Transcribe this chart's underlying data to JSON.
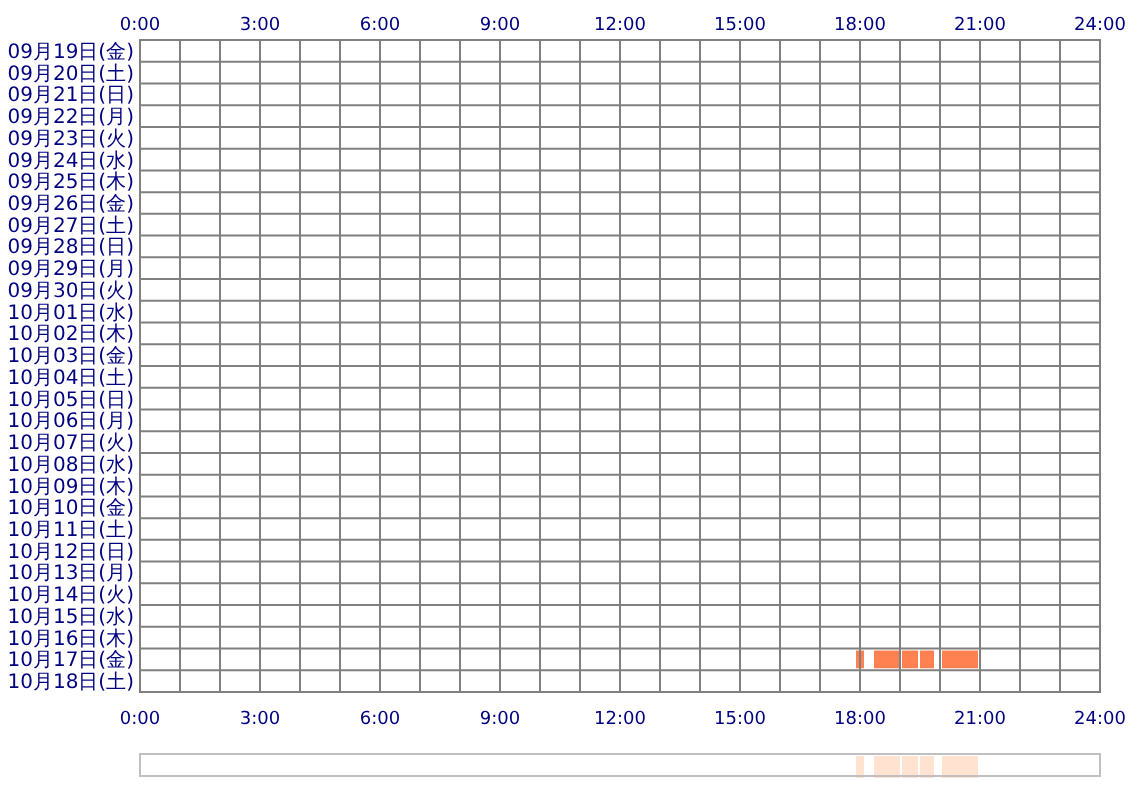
{
  "chart_data": [
    {
      "type": "bar",
      "orientation": "horizontal",
      "grid": true,
      "categories": [
        "09月19日(金)",
        "09月20日(土)",
        "09月21日(日)",
        "09月22日(月)",
        "09月23日(火)",
        "09月24日(水)",
        "09月25日(木)",
        "09月26日(金)",
        "09月27日(土)",
        "09月28日(日)",
        "09月29日(月)",
        "09月30日(火)",
        "10月01日(水)",
        "10月02日(木)",
        "10月03日(金)",
        "10月04日(土)",
        "10月05日(日)",
        "10月06日(月)",
        "10月07日(火)",
        "10月08日(水)",
        "10月09日(木)",
        "10月10日(金)",
        "10月11日(土)",
        "10月12日(日)",
        "10月13日(月)",
        "10月14日(火)",
        "10月15日(水)",
        "10月16日(木)",
        "10月17日(金)",
        "10月18日(土)"
      ],
      "series": [
        {
          "color": "#ff8050",
          "base": [
            null,
            null,
            null,
            null,
            null,
            null,
            null,
            null,
            null,
            null,
            null,
            null,
            null,
            null,
            null,
            null,
            null,
            null,
            null,
            null,
            null,
            null,
            null,
            null,
            null,
            null,
            null,
            null,
            17.9,
            null
          ],
          "values": [
            null,
            null,
            null,
            null,
            null,
            null,
            null,
            null,
            null,
            null,
            null,
            null,
            null,
            null,
            null,
            null,
            null,
            null,
            null,
            null,
            null,
            null,
            null,
            null,
            null,
            null,
            null,
            null,
            0.2,
            null
          ]
        },
        {
          "color": "#ff8050",
          "base": [
            null,
            null,
            null,
            null,
            null,
            null,
            null,
            null,
            null,
            null,
            null,
            null,
            null,
            null,
            null,
            null,
            null,
            null,
            null,
            null,
            null,
            null,
            null,
            null,
            null,
            null,
            null,
            null,
            18.35,
            null
          ],
          "values": [
            null,
            null,
            null,
            null,
            null,
            null,
            null,
            null,
            null,
            null,
            null,
            null,
            null,
            null,
            null,
            null,
            null,
            null,
            null,
            null,
            null,
            null,
            null,
            null,
            null,
            null,
            null,
            null,
            0.65,
            null
          ]
        },
        {
          "color": "#ff8050",
          "base": [
            null,
            null,
            null,
            null,
            null,
            null,
            null,
            null,
            null,
            null,
            null,
            null,
            null,
            null,
            null,
            null,
            null,
            null,
            null,
            null,
            null,
            null,
            null,
            null,
            null,
            null,
            null,
            null,
            19.05,
            null
          ],
          "values": [
            null,
            null,
            null,
            null,
            null,
            null,
            null,
            null,
            null,
            null,
            null,
            null,
            null,
            null,
            null,
            null,
            null,
            null,
            null,
            null,
            null,
            null,
            null,
            null,
            null,
            null,
            null,
            null,
            0.4,
            null
          ]
        },
        {
          "color": "#ff8050",
          "base": [
            null,
            null,
            null,
            null,
            null,
            null,
            null,
            null,
            null,
            null,
            null,
            null,
            null,
            null,
            null,
            null,
            null,
            null,
            null,
            null,
            null,
            null,
            null,
            null,
            null,
            null,
            null,
            null,
            19.5,
            null
          ],
          "values": [
            null,
            null,
            null,
            null,
            null,
            null,
            null,
            null,
            null,
            null,
            null,
            null,
            null,
            null,
            null,
            null,
            null,
            null,
            null,
            null,
            null,
            null,
            null,
            null,
            null,
            null,
            null,
            null,
            0.35,
            null
          ]
        },
        {
          "color": "#ff8050",
          "base": [
            null,
            null,
            null,
            null,
            null,
            null,
            null,
            null,
            null,
            null,
            null,
            null,
            null,
            null,
            null,
            null,
            null,
            null,
            null,
            null,
            null,
            null,
            null,
            null,
            null,
            null,
            null,
            null,
            20.05,
            null
          ],
          "values": [
            null,
            null,
            null,
            null,
            null,
            null,
            null,
            null,
            null,
            null,
            null,
            null,
            null,
            null,
            null,
            null,
            null,
            null,
            null,
            null,
            null,
            null,
            null,
            null,
            null,
            null,
            null,
            null,
            0.9,
            null
          ]
        }
      ],
      "xlim": [
        0,
        24
      ],
      "xticks": [
        {
          "value": 0,
          "label": "0:00"
        },
        {
          "value": 1,
          "label": null
        },
        {
          "value": 2,
          "label": null
        },
        {
          "value": 3,
          "label": "3:00"
        },
        {
          "value": 4,
          "label": null
        },
        {
          "value": 5,
          "label": null
        },
        {
          "value": 6,
          "label": "6:00"
        },
        {
          "value": 7,
          "label": null
        },
        {
          "value": 8,
          "label": null
        },
        {
          "value": 9,
          "label": "9:00"
        },
        {
          "value": 10,
          "label": null
        },
        {
          "value": 11,
          "label": null
        },
        {
          "value": 12,
          "label": "12:00"
        },
        {
          "value": 13,
          "label": null
        },
        {
          "value": 14,
          "label": null
        },
        {
          "value": 15,
          "label": "15:00"
        },
        {
          "value": 16,
          "label": null
        },
        {
          "value": 17,
          "label": null
        },
        {
          "value": 18,
          "label": "18:00"
        },
        {
          "value": 19,
          "label": null
        },
        {
          "value": 20,
          "label": null
        },
        {
          "value": 21,
          "label": "21:00"
        },
        {
          "value": 22,
          "label": null
        },
        {
          "value": 23,
          "label": null
        },
        {
          "value": 24,
          "label": "24:00"
        }
      ],
      "x2lim": [
        0,
        24
      ],
      "x2ticks": [
        {
          "value": 0,
          "label": "0:00"
        },
        {
          "value": 3,
          "label": "3:00"
        },
        {
          "value": 6,
          "label": "6:00"
        },
        {
          "value": 9,
          "label": "9:00"
        },
        {
          "value": 12,
          "label": "12:00"
        },
        {
          "value": 15,
          "label": "15:00"
        },
        {
          "value": 18,
          "label": "18:00"
        },
        {
          "value": 21,
          "label": "21:00"
        },
        {
          "value": 24,
          "label": "24:00"
        }
      ]
    },
    {
      "type": "bar",
      "orientation": "horizontal",
      "categories": [
        null
      ],
      "xlim": [
        0,
        24
      ],
      "series": [
        {
          "color": "#ffe2d0",
          "base": [
            17.9
          ],
          "values": [
            0.2
          ]
        },
        {
          "color": "#ffe2d0",
          "base": [
            18.35
          ],
          "values": [
            0.65
          ]
        },
        {
          "color": "#ffe2d0",
          "base": [
            19.05
          ],
          "values": [
            0.4
          ]
        },
        {
          "color": "#ffe2d0",
          "base": [
            19.5
          ],
          "values": [
            0.35
          ]
        },
        {
          "color": "#ffe2d0",
          "base": [
            20.05
          ],
          "values": [
            0.9
          ]
        }
      ]
    }
  ]
}
